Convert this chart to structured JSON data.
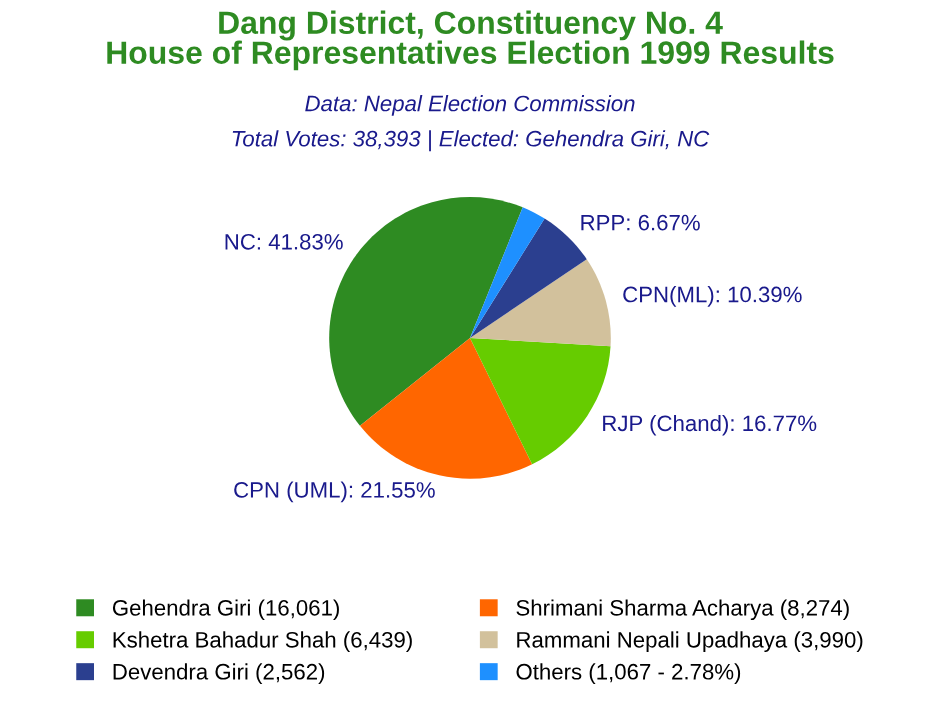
{
  "chart_data": {
    "type": "pie",
    "title": "Dang District, Constituency No. 4\nHouse of Representatives Election 1999 Results",
    "subtitle": "Data: Nepal Election Commission",
    "annotations": [
      "Total Votes: 38,393 | Elected: Gehendra Giri, NC"
    ],
    "categories": [
      "Gehendra Giri (16,061)",
      "Shrimani Sharma Acharya (8,274)",
      "Kshetra Bahadur Shah (6,439)",
      "Rammani Nepali Upadhaya (3,990)",
      "Devendra Giri (2,562)",
      "Others (1,067 - 2.78%)"
    ],
    "values": [
      41.83,
      21.55,
      16.77,
      10.39,
      6.67,
      2.78
    ],
    "value_labels": [
      "NC: 41.83%",
      "CPN (UML): 21.55%",
      "RJP (Chand): 16.77%",
      "CPN(ML): 10.39%",
      "RPP: 6.67%",
      null
    ],
    "colors": [
      "#2e8b22",
      "#ff6600",
      "#66cc00",
      "#d2c19c",
      "#2b3f8f",
      "#1e90ff"
    ],
    "legend": "bottom"
  }
}
